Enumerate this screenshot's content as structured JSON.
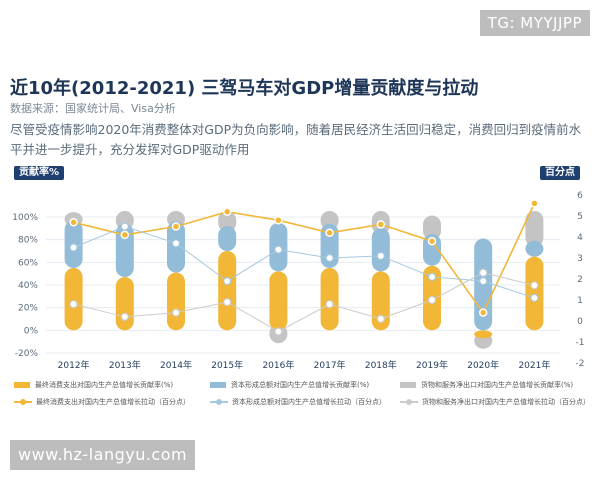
{
  "watermarks": {
    "top": "TG: MYYJJPP",
    "bottom": "www.hz-langyu.com"
  },
  "header": {
    "title": "近10年(2012-2021) 三驾马车对GDP增量贡献度与拉动",
    "source": "数据来源：国家统计局、Visa分析",
    "description": "尽管受疫情影响2020年消费整体对GDP为负向影响，随着居民经济生活回归稳定，消费回归到疫情前水平并进一步提升，充分发挥对GDP驱动作用"
  },
  "colors": {
    "consumption": "#f2b737",
    "capital": "#93bcd9",
    "netexport": "#c4c4c4",
    "consumption_line": "#f2b737",
    "capital_line": "#a7c8de",
    "netexport_line": "#cccccc",
    "axis_badge": "#1e3f6f"
  },
  "chart_data": {
    "type": "bar",
    "categories": [
      "2012年",
      "2013年",
      "2014年",
      "2015年",
      "2016年",
      "2017年",
      "2018年",
      "2019年",
      "2020年",
      "2021年"
    ],
    "left_axis": {
      "label": "贡献率%",
      "ticks": [
        "100%",
        "80%",
        "60%",
        "40%",
        "20%",
        "0%",
        "-20%"
      ],
      "ylim": [
        -20,
        100
      ]
    },
    "right_axis": {
      "label": "百分点",
      "ticks": [
        "6",
        "5",
        "4",
        "3",
        "2",
        "1",
        "0",
        "-1",
        "-2"
      ],
      "ylim": [
        -2,
        6
      ]
    },
    "bar_series": [
      {
        "name": "最终消费支出对国内生产总值增长贡献率(%)",
        "values": [
          55,
          47,
          51,
          70,
          52,
          55,
          52,
          57,
          -7,
          65
        ]
      },
      {
        "name": "资本形成总额对国内生产总值增长贡献率(%)",
        "values": [
          42,
          47,
          45,
          22,
          43,
          39,
          38,
          28,
          81,
          14
        ]
      },
      {
        "name": "货物和服务净出口对国内生产总值增长贡献率(%)",
        "values": [
          2,
          6,
          4,
          8,
          -6,
          6,
          10,
          11,
          -4,
          21
        ]
      }
    ],
    "line_series": [
      {
        "name": "最终消费支出对国内生产总值增长拉动（百分点）",
        "values": [
          4.7,
          4.1,
          4.5,
          5.2,
          4.8,
          4.2,
          4.6,
          3.8,
          0.4,
          5.6
        ]
      },
      {
        "name": "资本形成总额对国内生产总值增长拉动（百分点）",
        "values": [
          3.5,
          4.5,
          3.7,
          1.9,
          3.4,
          3.0,
          3.1,
          2.1,
          1.9,
          1.1
        ]
      },
      {
        "name": "货物和服务净出口对国内生产总值增长拉动（百分点）",
        "values": [
          0.8,
          0.2,
          0.4,
          0.9,
          -0.5,
          0.8,
          0.1,
          1.0,
          2.3,
          1.7
        ]
      }
    ]
  }
}
